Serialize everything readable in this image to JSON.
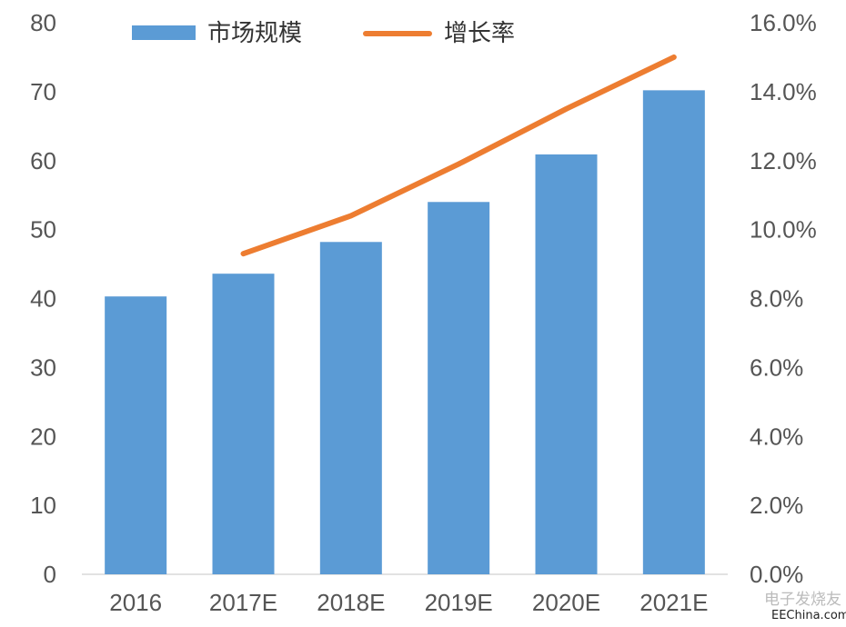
{
  "chart_data": {
    "type": "bar+line",
    "title": "",
    "categories": [
      "2016",
      "2017E",
      "2018E",
      "2019E",
      "2020E",
      "2021E"
    ],
    "series": [
      {
        "name": "市场规模",
        "type": "bar",
        "axis": "left",
        "color": "#5B9BD5",
        "values": [
          40.3,
          43.6,
          48.2,
          54.0,
          60.9,
          70.2
        ]
      },
      {
        "name": "增长率",
        "type": "line",
        "axis": "right",
        "color": "#ED7D31",
        "values": [
          null,
          9.3,
          10.4,
          11.9,
          13.5,
          15.0
        ]
      }
    ],
    "y_left": {
      "lim": [
        0,
        80
      ],
      "ticks": [
        "0",
        "10",
        "20",
        "30",
        "40",
        "50",
        "60",
        "70",
        "80"
      ]
    },
    "y_right": {
      "lim": [
        0,
        16
      ],
      "ticks": [
        "0.0%",
        "2.0%",
        "4.0%",
        "6.0%",
        "8.0%",
        "10.0%",
        "12.0%",
        "14.0%",
        "16.0%"
      ]
    },
    "legend": "top",
    "grid": false
  },
  "watermark": {
    "cn": "电子发烧友",
    "en": "EEChina.com"
  }
}
